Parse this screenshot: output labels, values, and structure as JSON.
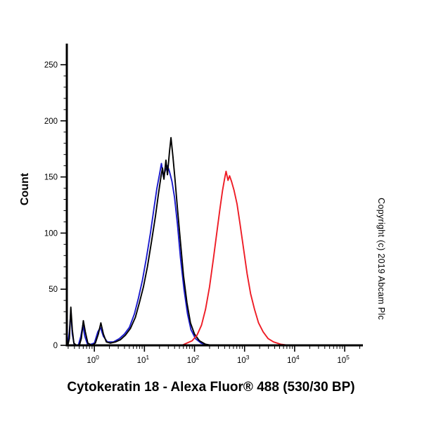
{
  "title": "Cytokeratin 18 - Alexa Fluor® 488 (530/30 BP)",
  "y_axis_label": "Count",
  "copyright": "Copyright (c) 2019 Abcam Plc",
  "colors": {
    "axis": "#000000",
    "black_series": "#000000",
    "blue_series": "#1a1acc",
    "red_series": "#ee1c25"
  },
  "chart_data": {
    "type": "line",
    "title": "Cytokeratin 18 - Alexa Fluor® 488 (530/30 BP)",
    "xlabel": "",
    "ylabel": "Count",
    "x_scale": "log",
    "xlim_log": [
      -0.55,
      5.35
    ],
    "ylim": [
      0,
      265
    ],
    "x_decades": [
      0,
      1,
      2,
      3,
      4,
      5
    ],
    "x_ticks": [
      "10^0",
      "10^1",
      "10^2",
      "10^3",
      "10^4",
      "10^5"
    ],
    "y_ticks": [
      0,
      50,
      100,
      150,
      200,
      250
    ],
    "y_minor_step": 10,
    "grid": false,
    "legend": "none",
    "series": [
      {
        "name": "black",
        "color": "#000000",
        "points": [
          [
            -0.53,
            0
          ],
          [
            -0.5,
            6
          ],
          [
            -0.47,
            34
          ],
          [
            -0.44,
            14
          ],
          [
            -0.41,
            2
          ],
          [
            -0.36,
            0
          ],
          [
            -0.3,
            0
          ],
          [
            -0.26,
            6
          ],
          [
            -0.22,
            22
          ],
          [
            -0.18,
            12
          ],
          [
            -0.13,
            2
          ],
          [
            -0.05,
            0
          ],
          [
            0.02,
            2
          ],
          [
            0.08,
            10
          ],
          [
            0.13,
            20
          ],
          [
            0.18,
            10
          ],
          [
            0.24,
            3
          ],
          [
            0.32,
            2
          ],
          [
            0.42,
            3
          ],
          [
            0.52,
            5
          ],
          [
            0.62,
            9
          ],
          [
            0.72,
            15
          ],
          [
            0.82,
            25
          ],
          [
            0.9,
            38
          ],
          [
            0.98,
            52
          ],
          [
            1.06,
            70
          ],
          [
            1.14,
            92
          ],
          [
            1.22,
            115
          ],
          [
            1.28,
            135
          ],
          [
            1.33,
            150
          ],
          [
            1.36,
            158
          ],
          [
            1.39,
            148
          ],
          [
            1.43,
            165
          ],
          [
            1.46,
            152
          ],
          [
            1.5,
            172
          ],
          [
            1.53,
            185
          ],
          [
            1.57,
            168
          ],
          [
            1.61,
            148
          ],
          [
            1.66,
            122
          ],
          [
            1.72,
            92
          ],
          [
            1.78,
            62
          ],
          [
            1.85,
            38
          ],
          [
            1.92,
            20
          ],
          [
            2.0,
            10
          ],
          [
            2.1,
            4
          ],
          [
            2.22,
            1
          ],
          [
            2.35,
            0
          ],
          [
            5.33,
            0
          ]
        ]
      },
      {
        "name": "blue",
        "color": "#1a1acc",
        "points": [
          [
            -0.53,
            0
          ],
          [
            -0.5,
            12
          ],
          [
            -0.47,
            30
          ],
          [
            -0.44,
            10
          ],
          [
            -0.4,
            0
          ],
          [
            -0.32,
            0
          ],
          [
            -0.27,
            8
          ],
          [
            -0.23,
            18
          ],
          [
            -0.19,
            8
          ],
          [
            -0.13,
            0
          ],
          [
            0.0,
            2
          ],
          [
            0.07,
            12
          ],
          [
            0.12,
            16
          ],
          [
            0.18,
            8
          ],
          [
            0.26,
            3
          ],
          [
            0.38,
            3
          ],
          [
            0.5,
            6
          ],
          [
            0.6,
            10
          ],
          [
            0.7,
            16
          ],
          [
            0.8,
            28
          ],
          [
            0.88,
            42
          ],
          [
            0.96,
            58
          ],
          [
            1.04,
            78
          ],
          [
            1.12,
            100
          ],
          [
            1.19,
            122
          ],
          [
            1.25,
            140
          ],
          [
            1.3,
            152
          ],
          [
            1.34,
            162
          ],
          [
            1.38,
            150
          ],
          [
            1.42,
            156
          ],
          [
            1.46,
            160
          ],
          [
            1.5,
            155
          ],
          [
            1.55,
            146
          ],
          [
            1.6,
            132
          ],
          [
            1.66,
            108
          ],
          [
            1.72,
            78
          ],
          [
            1.79,
            50
          ],
          [
            1.86,
            28
          ],
          [
            1.93,
            14
          ],
          [
            2.02,
            6
          ],
          [
            2.13,
            2
          ],
          [
            2.28,
            0
          ],
          [
            5.33,
            0
          ]
        ]
      },
      {
        "name": "red",
        "color": "#ee1c25",
        "points": [
          [
            -0.53,
            0
          ],
          [
            1.75,
            0
          ],
          [
            1.85,
            2
          ],
          [
            1.95,
            4
          ],
          [
            2.05,
            9
          ],
          [
            2.14,
            18
          ],
          [
            2.22,
            32
          ],
          [
            2.3,
            52
          ],
          [
            2.38,
            78
          ],
          [
            2.45,
            102
          ],
          [
            2.51,
            122
          ],
          [
            2.56,
            138
          ],
          [
            2.6,
            148
          ],
          [
            2.63,
            155
          ],
          [
            2.67,
            147
          ],
          [
            2.7,
            151
          ],
          [
            2.74,
            146
          ],
          [
            2.79,
            138
          ],
          [
            2.85,
            126
          ],
          [
            2.91,
            108
          ],
          [
            2.98,
            86
          ],
          [
            3.05,
            64
          ],
          [
            3.12,
            46
          ],
          [
            3.2,
            32
          ],
          [
            3.28,
            20
          ],
          [
            3.37,
            12
          ],
          [
            3.47,
            6
          ],
          [
            3.58,
            3
          ],
          [
            3.72,
            1
          ],
          [
            3.88,
            0
          ],
          [
            5.33,
            0
          ]
        ]
      }
    ]
  }
}
